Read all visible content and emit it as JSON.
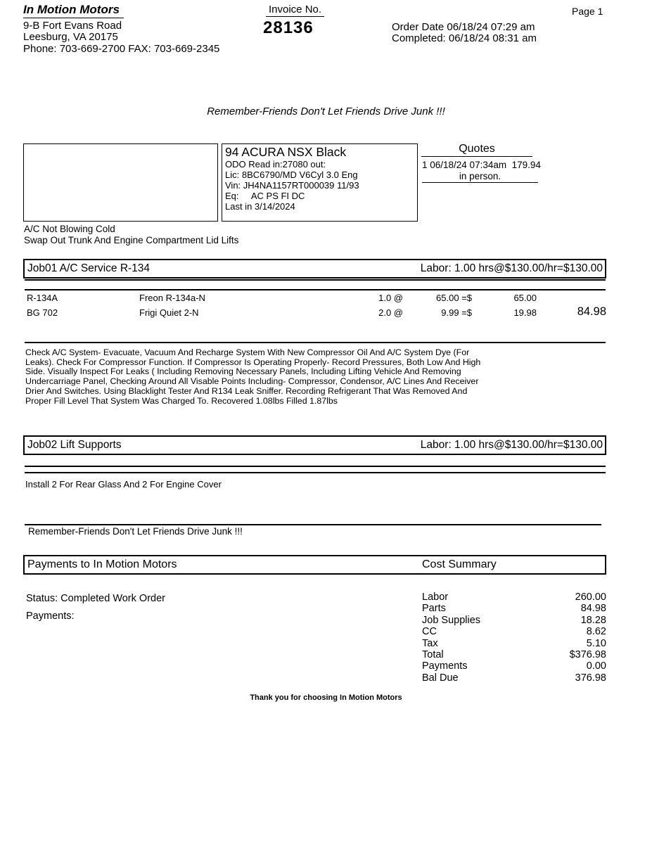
{
  "header": {
    "shop_name": "In Motion Motors",
    "address_line1": "9-B Fort Evans Road",
    "address_line2": "Leesburg, VA 20175",
    "phone_line": "Phone: 703-669-2700 FAX: 703-669-2345",
    "invoice_label": "Invoice No.",
    "invoice_number": "28136",
    "page": "Page 1",
    "order_date": "Order Date 06/18/24 07:29 am",
    "completed": "Completed: 06/18/24 08:31 am"
  },
  "slogan": "Remember-Friends Don't Let Friends Drive Junk !!!",
  "vehicle": {
    "title": "94 ACURA NSX Black",
    "odo": "ODO Read in:27080 out:",
    "lic": "Lic: 8BC6790/MD V6Cyl 3.0 Eng",
    "vin": "Vin: JH4NA1157RT000039 11/93",
    "eq": "Eq:     AC PS FI DC",
    "last_in": "Last in 3/14/2024"
  },
  "quotes": {
    "heading": "Quotes",
    "entry": "1 06/18/24 07:34am  179.94",
    "method": "in person."
  },
  "complaints": {
    "line1": "A/C Not Blowing Cold",
    "line2": "Swap Out Trunk And Engine Compartment Lid Lifts"
  },
  "jobs": [
    {
      "title": "Job01 A/C Service R-134",
      "labor": "Labor: 1.00 hrs@$130.00/hr=$130.00",
      "parts": [
        {
          "pn": "R-134A",
          "desc": "Freon R-134a-N",
          "qty": "1.0 @",
          "price": "65.00 =$",
          "ext": "65.00",
          "total": ""
        },
        {
          "pn": "BG 702",
          "desc": "Frigi Quiet 2-N",
          "qty": "2.0 @",
          "price": "9.99 =$",
          "ext": "19.98",
          "total": "84.98"
        }
      ],
      "description": [
        "Check A/C System-  Evacuate, Vacuum And Recharge System With New Compressor Oil And A/C System Dye (For",
        "Leaks). Check For Compressor Function. If Compressor Is Operating Properly- Record Pressures, Both Low And High",
        "Side. Visually Inspect For Leaks ( Including Removing Necessary Panels, Including Lifting Vehicle And Removing",
        "Undercarriage Panel, Checking Around All Visable Points Including- Compressor, Condensor, A/C Lines And Receiver",
        "Drier And Switches. Using Blacklight Tester And R134 Leak Sniffer. Recording Refrigerant That Was Removed And",
        "Proper Fill Level That System Was Charged To. Recovered 1.08lbs Filled 1.87lbs"
      ]
    },
    {
      "title": "Job02 Lift Supports",
      "labor": "Labor: 1.00 hrs@$130.00/hr=$130.00",
      "parts": [],
      "description": [
        "Install 2 For Rear Glass And 2 For Engine Cover"
      ]
    }
  ],
  "footer_slogan": "Remember-Friends Don't Let Friends Drive Junk !!!",
  "payments_section": {
    "title": "Payments to In Motion Motors",
    "cost_summary_title": "Cost Summary",
    "status": "Status: Completed Work Order",
    "payments_label": "Payments:"
  },
  "cost_summary": {
    "rows": [
      {
        "label": "Labor",
        "value": "260.00"
      },
      {
        "label": "Parts",
        "value": "84.98"
      },
      {
        "label": "Job Supplies",
        "value": "18.28"
      },
      {
        "label": "CC",
        "value": "8.62"
      },
      {
        "label": "Tax",
        "value": "5.10"
      },
      {
        "label": "Total",
        "value": "$376.98"
      },
      {
        "label": "Payments",
        "value": "0.00"
      },
      {
        "label": "Bal Due",
        "value": "376.98"
      }
    ]
  },
  "thank_you": "Thank you for choosing In Motion Motors"
}
